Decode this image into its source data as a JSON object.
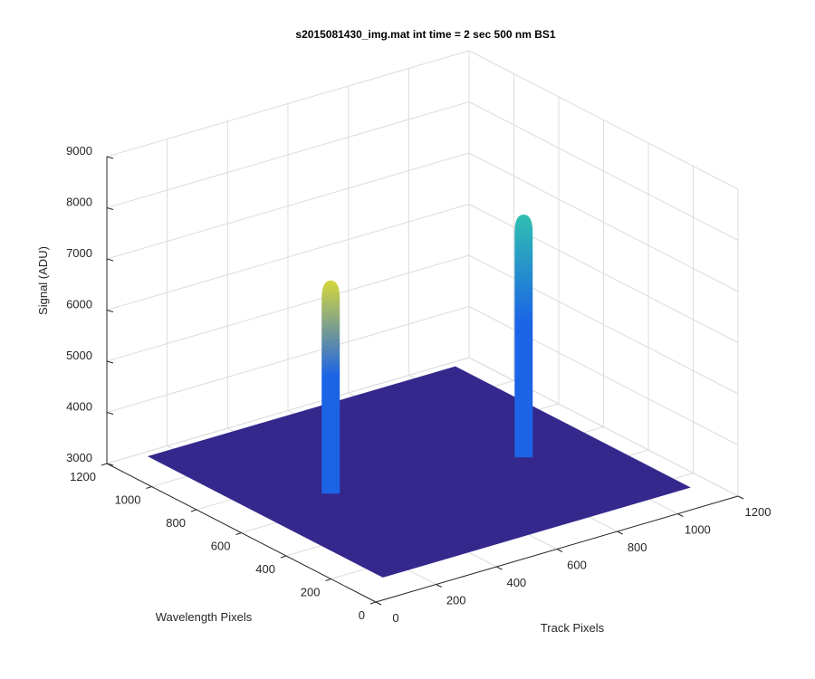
{
  "chart_data": {
    "type": "surface3d",
    "title": "s2015081430_img.mat int time = 2 sec  500 nm BS1",
    "xlabel": "Track Pixels",
    "ylabel": "Wavelength Pixels",
    "zlabel": "Signal (ADU)",
    "xlim": [
      0,
      1200
    ],
    "ylim": [
      0,
      1200
    ],
    "zlim": [
      3000,
      9000
    ],
    "xticks": [
      0,
      200,
      400,
      600,
      800,
      1000,
      1200
    ],
    "yticks": [
      0,
      200,
      400,
      600,
      800,
      1000,
      1200
    ],
    "zticks": [
      3000,
      4000,
      5000,
      6000,
      7000,
      8000,
      9000
    ],
    "grid": true,
    "floor": {
      "x": [
        105,
        1125
      ],
      "y": [
        110,
        1160
      ],
      "z": 3050,
      "color": "#35288c"
    },
    "peaks": [
      {
        "x": 406,
        "y": 748,
        "z": 6900,
        "colors": [
          "#1c63e6",
          "#d6d83a"
        ]
      },
      {
        "x": 962,
        "y": 636,
        "z": 7480,
        "colors": [
          "#1c63e6",
          "#2fc0b0"
        ]
      }
    ]
  }
}
